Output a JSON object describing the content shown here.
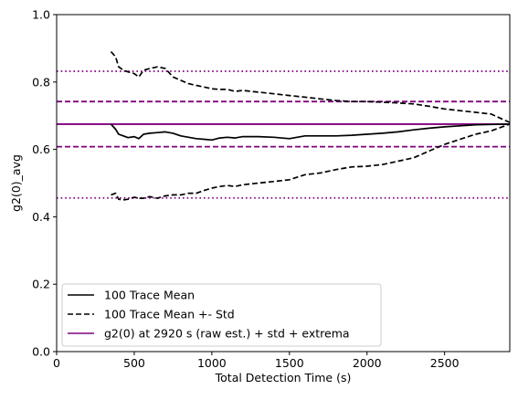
{
  "chart_data": {
    "type": "line",
    "title": "",
    "xlabel": "Total Detection Time (s)",
    "ylabel": "g2(0)_avg",
    "xlim": [
      0,
      2920
    ],
    "ylim": [
      0,
      1.0
    ],
    "xticks": [
      0,
      500,
      1000,
      1500,
      2000,
      2500
    ],
    "yticks": [
      0.0,
      0.2,
      0.4,
      0.6,
      0.8,
      1.0
    ],
    "ytick_labels": [
      "0.0",
      "0.2",
      "0.4",
      "0.6",
      "0.8",
      "1.0"
    ],
    "grid": false,
    "legend_position": "lower-left",
    "colors": {
      "mean": "#000000",
      "reference": "#800080"
    },
    "series": [
      {
        "name": "100 Trace Mean",
        "style": "solid",
        "color": "#000000",
        "x": [
          350,
          380,
          400,
          430,
          460,
          500,
          530,
          560,
          600,
          650,
          700,
          750,
          800,
          850,
          900,
          950,
          1000,
          1050,
          1100,
          1150,
          1200,
          1300,
          1400,
          1500,
          1550,
          1600,
          1700,
          1800,
          1900,
          2000,
          2100,
          2200,
          2300,
          2400,
          2500,
          2600,
          2700,
          2800,
          2920
        ],
        "y": [
          0.675,
          0.66,
          0.645,
          0.64,
          0.635,
          0.638,
          0.632,
          0.645,
          0.648,
          0.65,
          0.652,
          0.648,
          0.64,
          0.636,
          0.632,
          0.63,
          0.628,
          0.634,
          0.636,
          0.634,
          0.638,
          0.638,
          0.636,
          0.632,
          0.636,
          0.64,
          0.64,
          0.64,
          0.642,
          0.645,
          0.648,
          0.652,
          0.658,
          0.663,
          0.667,
          0.67,
          0.673,
          0.674,
          0.675
        ]
      },
      {
        "name": "100 Trace Mean +- Std",
        "style": "dashed",
        "color": "#000000",
        "x": [
          350,
          380,
          400,
          430,
          460,
          500,
          530,
          560,
          600,
          650,
          700,
          750,
          800,
          850,
          900,
          950,
          1000,
          1050,
          1100,
          1150,
          1200,
          1300,
          1400,
          1500,
          1600,
          1700,
          1800,
          1900,
          2000,
          2100,
          2200,
          2300,
          2400,
          2500,
          2600,
          2700,
          2800,
          2920
        ],
        "y": [
          0.89,
          0.875,
          0.845,
          0.835,
          0.83,
          0.825,
          0.815,
          0.835,
          0.84,
          0.845,
          0.84,
          0.815,
          0.805,
          0.795,
          0.79,
          0.785,
          0.78,
          0.778,
          0.778,
          0.772,
          0.775,
          0.77,
          0.765,
          0.76,
          0.755,
          0.75,
          0.745,
          0.742,
          0.742,
          0.74,
          0.738,
          0.735,
          0.728,
          0.72,
          0.715,
          0.71,
          0.705,
          0.68
        ]
      },
      {
        "name": "",
        "style": "dashed",
        "color": "#000000",
        "x": [
          350,
          380,
          400,
          430,
          460,
          500,
          530,
          560,
          600,
          650,
          700,
          750,
          800,
          850,
          900,
          950,
          1000,
          1050,
          1100,
          1150,
          1200,
          1300,
          1400,
          1500,
          1600,
          1700,
          1800,
          1900,
          2000,
          2100,
          2200,
          2300,
          2400,
          2500,
          2600,
          2700,
          2800,
          2920
        ],
        "y": [
          0.465,
          0.47,
          0.452,
          0.45,
          0.452,
          0.458,
          0.455,
          0.455,
          0.46,
          0.455,
          0.462,
          0.465,
          0.465,
          0.47,
          0.47,
          0.478,
          0.485,
          0.49,
          0.493,
          0.49,
          0.495,
          0.5,
          0.505,
          0.51,
          0.525,
          0.53,
          0.54,
          0.548,
          0.55,
          0.555,
          0.565,
          0.575,
          0.595,
          0.615,
          0.63,
          0.645,
          0.655,
          0.675
        ]
      }
    ],
    "reference_lines": {
      "legend_label": "g2(0) at 2920 s (raw est.) + std + extrema",
      "color": "#800080",
      "lines": [
        {
          "y": 0.675,
          "style": "solid"
        },
        {
          "y": 0.742,
          "style": "dashed"
        },
        {
          "y": 0.608,
          "style": "dashed"
        },
        {
          "y": 0.832,
          "style": "dotted"
        },
        {
          "y": 0.456,
          "style": "dotted"
        }
      ]
    }
  }
}
